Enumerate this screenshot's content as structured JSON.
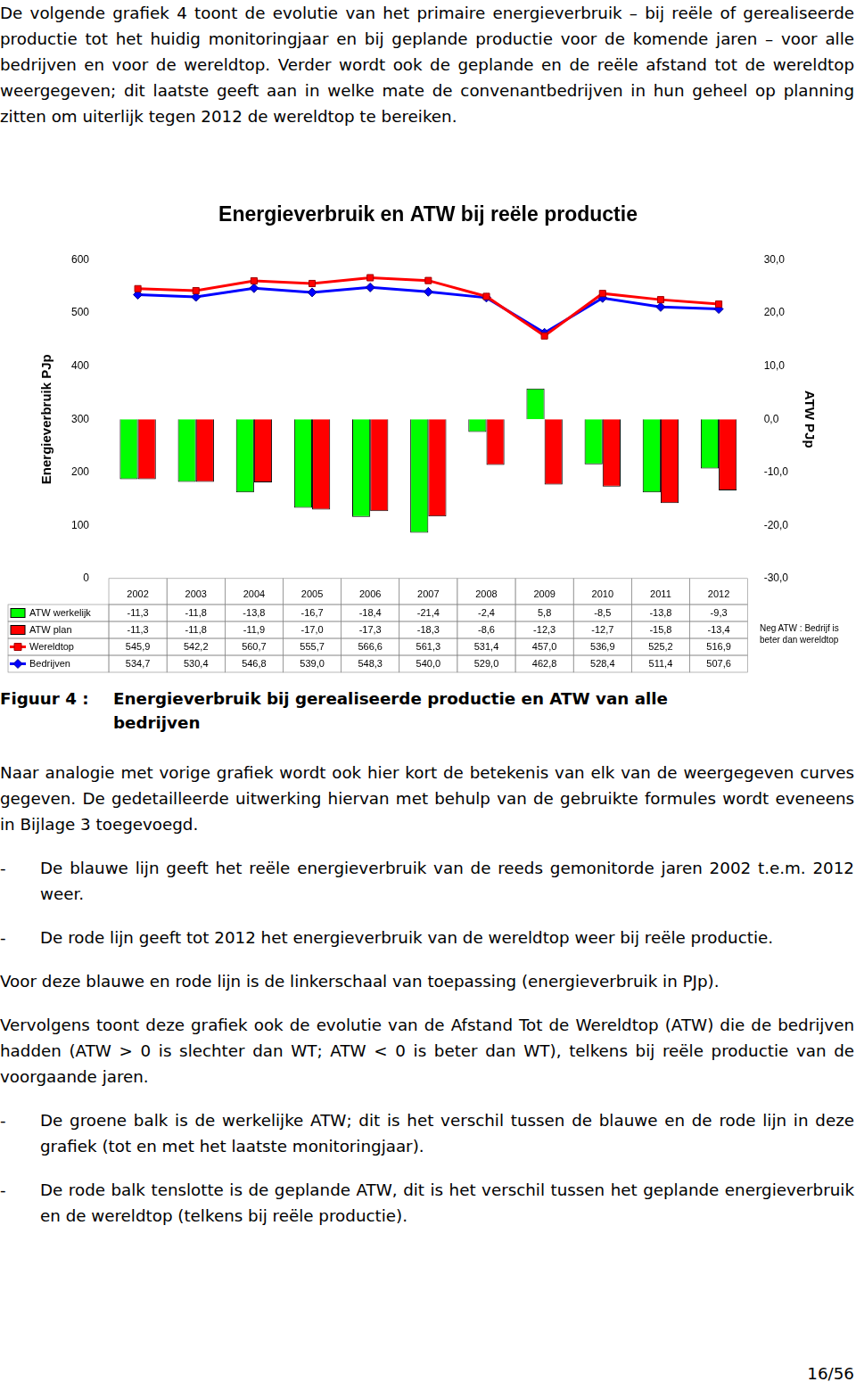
{
  "document": {
    "intro": "De volgende grafiek 4 toont de evolutie van het primaire energieverbruik – bij reële of gerealiseerde productie tot het huidig monitoringjaar en bij geplande productie voor de komende jaren – voor alle bedrijven en voor de wereldtop. Verder wordt ook de geplande en de reële afstand tot de wereldtop weergegeven; dit laatste geeft aan in welke mate de convenantbedrijven in hun geheel op planning zitten om uiterlijk tegen 2012 de wereldtop te bereiken.",
    "figure": {
      "label": "Figuur 4 :",
      "caption": "Energieverbruik bij gerealiseerde productie en ATW van alle bedrijven"
    },
    "bullet": "-",
    "body": [
      {
        "type": "p",
        "text": "Naar analogie met vorige grafiek wordt ook hier kort de betekenis van elk van de weergegeven curves gegeven. De gedetailleerde uitwerking hiervan met behulp van de gebruikte formules wordt eveneens in Bijlage 3 toegevoegd."
      },
      {
        "type": "bullet",
        "text": "De blauwe lijn geeft het reële energieverbruik van de reeds gemonitorde jaren 2002 t.e.m. 2012 weer."
      },
      {
        "type": "bullet",
        "text": "De rode lijn geeft tot 2012 het energieverbruik van de wereldtop weer bij reële productie."
      },
      {
        "type": "p",
        "text": "Voor deze blauwe en rode lijn is de linkerschaal van toepassing (energieverbruik in PJp)."
      },
      {
        "type": "p",
        "text": "Vervolgens toont deze grafiek ook de evolutie van de Afstand Tot de Wereldtop (ATW) die de bedrijven hadden (ATW > 0 is slechter dan WT; ATW < 0 is beter dan WT), telkens bij reële productie van de voorgaande jaren."
      },
      {
        "type": "bullet",
        "text": "De groene balk is de werkelijke ATW; dit is het verschil tussen de blauwe en de rode lijn in deze grafiek (tot en met het laatste monitoringjaar)."
      },
      {
        "type": "bullet",
        "text": "De rode balk tenslotte is de geplande ATW, dit is het verschil tussen het geplande energieverbruik en de wereldtop (telkens bij reële productie)."
      }
    ],
    "page_number": "16/56"
  },
  "chart_data": {
    "type": "bar",
    "title": "Energieverbruik en ATW bij reële productie",
    "y_label": "Energieverbruik PJp",
    "y2_label": "ATW PJp",
    "annotation": "Neg ATW : Bedrijf is beter dan wereldtop",
    "categories": [
      "2002",
      "2003",
      "2004",
      "2005",
      "2006",
      "2007",
      "2008",
      "2009",
      "2010",
      "2011",
      "2012"
    ],
    "series": [
      {
        "name": "ATW werkelijk",
        "type": "bar",
        "axis": "y2",
        "color": "#00ff00",
        "values": [
          -11.3,
          -11.8,
          -13.8,
          -16.7,
          -18.4,
          -21.4,
          -2.4,
          5.8,
          -8.5,
          -13.8,
          -9.3
        ],
        "value_labels": [
          "-11,3",
          "-11,8",
          "-13,8",
          "-16,7",
          "-18,4",
          "-21,4",
          "-2,4",
          "5,8",
          "-8,5",
          "-13,8",
          "-9,3"
        ]
      },
      {
        "name": "ATW plan",
        "type": "bar",
        "axis": "y2",
        "color": "#ff0000",
        "values": [
          -11.3,
          -11.8,
          -11.9,
          -17.0,
          -17.3,
          -18.3,
          -8.6,
          -12.3,
          -12.7,
          -15.8,
          -13.4
        ],
        "value_labels": [
          "-11,3",
          "-11,8",
          "-11,9",
          "-17,0",
          "-17,3",
          "-18,3",
          "-8,6",
          "-12,3",
          "-12,7",
          "-15,8",
          "-13,4"
        ]
      },
      {
        "name": "Wereldtop",
        "type": "line",
        "color": "#ff0000",
        "marker": "square",
        "values": [
          545.9,
          542.2,
          560.7,
          555.7,
          566.6,
          561.3,
          531.4,
          457.0,
          536.9,
          525.2,
          516.9
        ],
        "value_labels": [
          "545,9",
          "542,2",
          "560,7",
          "555,7",
          "566,6",
          "561,3",
          "531,4",
          "457,0",
          "536,9",
          "525,2",
          "516,9"
        ]
      },
      {
        "name": "Bedrijven",
        "type": "line",
        "color": "#0000ff",
        "marker": "diamond",
        "values": [
          534.7,
          530.4,
          546.8,
          539.0,
          548.3,
          540.0,
          529.0,
          462.8,
          528.4,
          511.4,
          507.6
        ],
        "value_labels": [
          "534,7",
          "530,4",
          "546,8",
          "539,0",
          "548,3",
          "540,0",
          "529,0",
          "462,8",
          "528,4",
          "511,4",
          "507,6"
        ]
      }
    ],
    "ylim": [
      0,
      600
    ],
    "yticks": [
      0,
      100,
      200,
      300,
      400,
      500,
      600
    ],
    "y2lim": [
      -30,
      30
    ],
    "y2ticks": [
      {
        "value": -30,
        "label": "-30,0"
      },
      {
        "value": -20,
        "label": "-20,0"
      },
      {
        "value": -10,
        "label": "-10,0"
      },
      {
        "value": 0,
        "label": "0,0"
      },
      {
        "value": 10,
        "label": "10,0"
      },
      {
        "value": 20,
        "label": "20,0"
      },
      {
        "value": 30,
        "label": "30,0"
      }
    ],
    "grid": false
  }
}
